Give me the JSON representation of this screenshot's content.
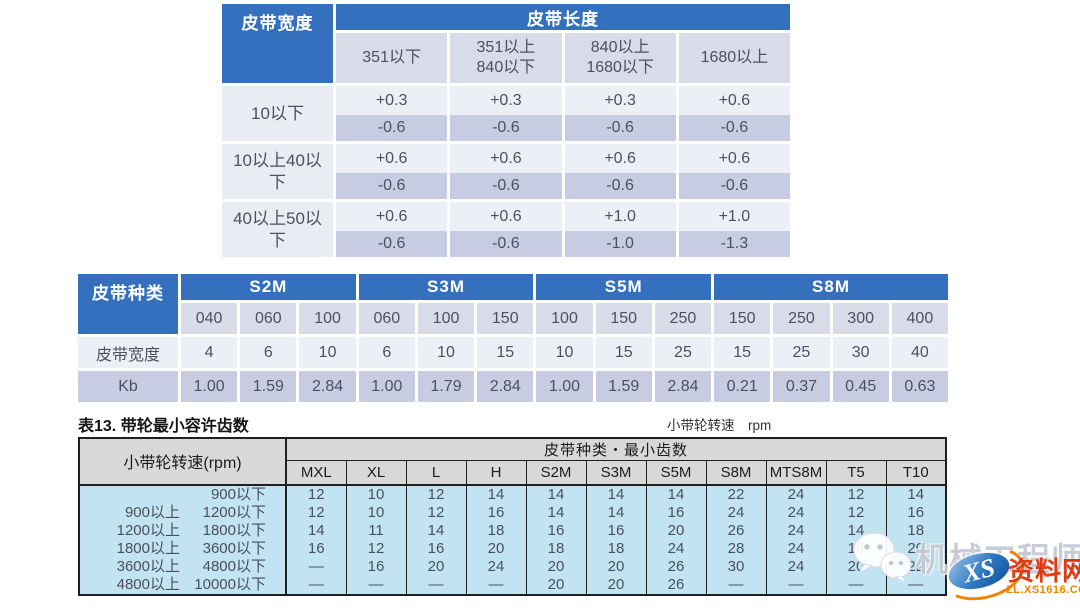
{
  "colors": {
    "header_blue": "#3470BD",
    "subheader_lavender": "#D8DBE8",
    "row_light": "#EDEFF6",
    "row_dark": "#C7CCE2",
    "label_cell": "#EAECF3",
    "table_text": "#4A5160",
    "t3_header_gray": "#D8D8D8",
    "t3_data_blue": "#C2E3F2",
    "watermark_gray": "#C6CAD2",
    "logo_red": "#E23A12",
    "logo_orange": "#F08300"
  },
  "tolerance_table": {
    "corner_header": "皮带宽度",
    "span_header": "皮带长度",
    "length_ranges": [
      "351以下",
      "351以上\n840以下",
      "840以上\n1680以下",
      "1680以上"
    ],
    "rows": [
      {
        "width_range": "10以下",
        "plus": [
          "+0.3",
          "+0.3",
          "+0.3",
          "+0.6"
        ],
        "minus": [
          "-0.6",
          "-0.6",
          "-0.6",
          "-0.6"
        ]
      },
      {
        "width_range": "10以上40以下",
        "plus": [
          "+0.6",
          "+0.6",
          "+0.6",
          "+0.6"
        ],
        "minus": [
          "-0.6",
          "-0.6",
          "-0.6",
          "-0.6"
        ]
      },
      {
        "width_range": "40以上50以下",
        "plus": [
          "+0.6",
          "+0.6",
          "+1.0",
          "+1.0"
        ],
        "minus": [
          "-0.6",
          "-0.6",
          "-1.0",
          "-1.3"
        ]
      }
    ]
  },
  "belt_type_table": {
    "corner_header": "皮带种类",
    "width_row_label": "皮带宽度",
    "kb_row_label": "Kb",
    "groups": [
      {
        "name": "S2M",
        "codes": [
          "040",
          "060",
          "100"
        ],
        "widths": [
          "4",
          "6",
          "10"
        ],
        "kb": [
          "1.00",
          "1.59",
          "2.84"
        ]
      },
      {
        "name": "S3M",
        "codes": [
          "060",
          "100",
          "150"
        ],
        "widths": [
          "6",
          "10",
          "15"
        ],
        "kb": [
          "1.00",
          "1.79",
          "2.84"
        ]
      },
      {
        "name": "S5M",
        "codes": [
          "100",
          "150",
          "250"
        ],
        "widths": [
          "10",
          "15",
          "25"
        ],
        "kb": [
          "1.00",
          "1.59",
          "2.84"
        ]
      },
      {
        "name": "S8M",
        "codes": [
          "150",
          "250",
          "300",
          "400"
        ],
        "widths": [
          "15",
          "25",
          "30",
          "40"
        ],
        "kb": [
          "0.21",
          "0.37",
          "0.45",
          "0.63"
        ]
      }
    ]
  },
  "teeth_table": {
    "title": "表13. 带轮最小容许齿数",
    "note": "小带轮转速　rpm",
    "rpm_header": "小带轮转速(rpm)",
    "span_header": "皮带种类・最小齿数",
    "belt_types": [
      "MXL",
      "XL",
      "L",
      "H",
      "S2M",
      "S3M",
      "S5M",
      "S8M",
      "MTS8M",
      "T5",
      "T10"
    ],
    "rows": [
      {
        "from": "",
        "to": "900以下",
        "values": [
          "12",
          "10",
          "12",
          "14",
          "14",
          "14",
          "14",
          "22",
          "24",
          "12",
          "14"
        ]
      },
      {
        "from": "900以上",
        "to": "1200以下",
        "values": [
          "12",
          "10",
          "12",
          "16",
          "14",
          "14",
          "16",
          "24",
          "24",
          "12",
          "16"
        ]
      },
      {
        "from": "1200以上",
        "to": "1800以下",
        "values": [
          "14",
          "11",
          "14",
          "18",
          "16",
          "16",
          "20",
          "26",
          "24",
          "14",
          "18"
        ]
      },
      {
        "from": "1800以上",
        "to": "3600以下",
        "values": [
          "16",
          "12",
          "16",
          "20",
          "18",
          "18",
          "24",
          "28",
          "24",
          "16",
          "20"
        ]
      },
      {
        "from": "3600以上",
        "to": "4800以下",
        "values": [
          "—",
          "16",
          "20",
          "24",
          "20",
          "20",
          "26",
          "30",
          "24",
          "20",
          "22"
        ]
      },
      {
        "from": "4800以上",
        "to": "10000以下",
        "values": [
          "—",
          "—",
          "—",
          "—",
          "20",
          "20",
          "26",
          "—",
          "—",
          "—",
          "—"
        ]
      }
    ]
  },
  "watermark": {
    "wechat_label": "机械工程师",
    "logo_monogram": "XS",
    "logo_name": "资料网",
    "logo_url": "ZL.XS1616.COM"
  }
}
